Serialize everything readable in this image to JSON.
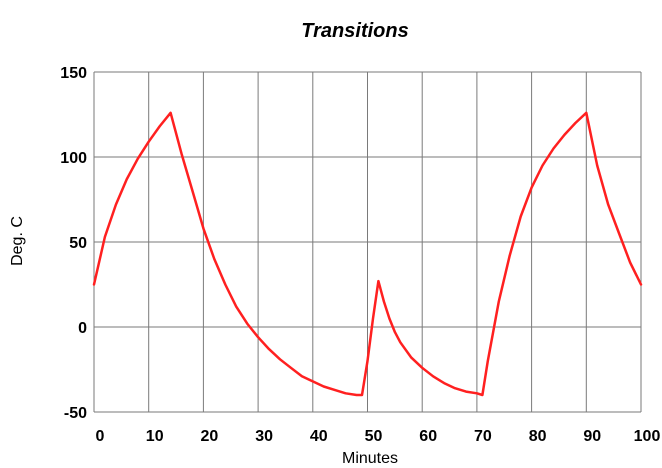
{
  "chart_data": {
    "type": "line",
    "title": "Transitions",
    "xlabel": "Minutes",
    "ylabel": "Deg. C",
    "xlim": [
      0,
      100
    ],
    "ylim": [
      -50,
      150
    ],
    "x_ticks": [
      0,
      10,
      20,
      30,
      40,
      50,
      60,
      70,
      80,
      90,
      100
    ],
    "y_ticks": [
      150,
      100,
      50,
      0,
      -50
    ],
    "grid": true,
    "legend": "none",
    "series": [
      {
        "color": "#ff2020",
        "x": [
          0,
          2,
          4,
          6,
          8,
          10,
          12,
          14,
          16,
          18,
          20,
          22,
          24,
          26,
          28,
          30,
          32,
          34,
          36,
          38,
          40,
          42,
          44,
          46,
          48,
          49,
          50,
          51,
          52,
          53,
          54,
          55,
          56,
          58,
          60,
          62,
          64,
          66,
          68,
          70,
          71,
          72,
          74,
          76,
          78,
          80,
          82,
          84,
          86,
          88,
          90,
          92,
          94,
          96,
          98,
          100
        ],
        "y": [
          25,
          53,
          72,
          87,
          99,
          109,
          118,
          126,
          102,
          80,
          58,
          40,
          25,
          12,
          2,
          -6,
          -13,
          -19,
          -24,
          -29,
          -32,
          -35,
          -37,
          -39,
          -40,
          -40,
          -20,
          5,
          27,
          15,
          5,
          -3,
          -9,
          -18,
          -24,
          -29,
          -33,
          -36,
          -38,
          -39,
          -40,
          -20,
          15,
          42,
          65,
          82,
          95,
          105,
          113,
          120,
          126,
          95,
          72,
          55,
          38,
          25
        ]
      }
    ]
  }
}
